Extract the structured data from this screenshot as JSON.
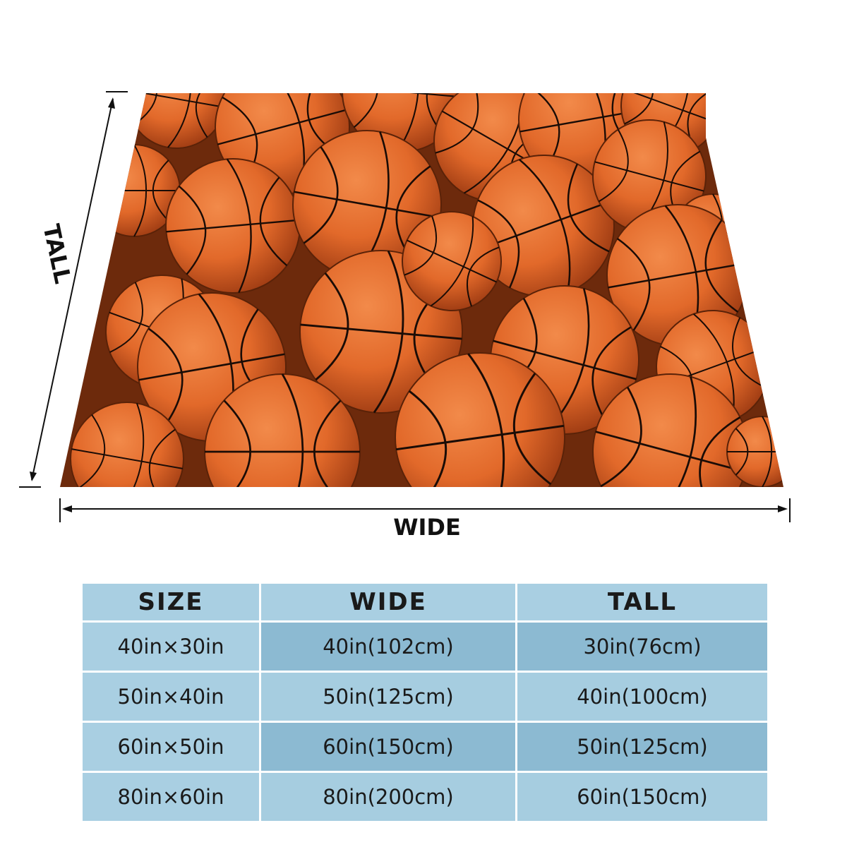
{
  "dimensions": {
    "tall_label": "TALL",
    "wide_label": "WIDE"
  },
  "product": {
    "pattern": "basketball-pattern-blanket",
    "base_color": "#e2692a",
    "seam_color": "#1a0c06"
  },
  "size_table": {
    "headers": [
      "SIZE",
      "WIDE",
      "TALL"
    ],
    "rows": [
      [
        "40in×30in",
        "40in(102cm)",
        "30in(76cm)"
      ],
      [
        "50in×40in",
        "50in(125cm)",
        "40in(100cm)"
      ],
      [
        "60in×50in",
        "60in(150cm)",
        "50in(125cm)"
      ],
      [
        "80in×60in",
        "80in(200cm)",
        "60in(150cm)"
      ]
    ],
    "colors": {
      "header": "#a9cfe2",
      "row_dark": "#8cbad2",
      "row_light": "#a6cde0"
    }
  }
}
